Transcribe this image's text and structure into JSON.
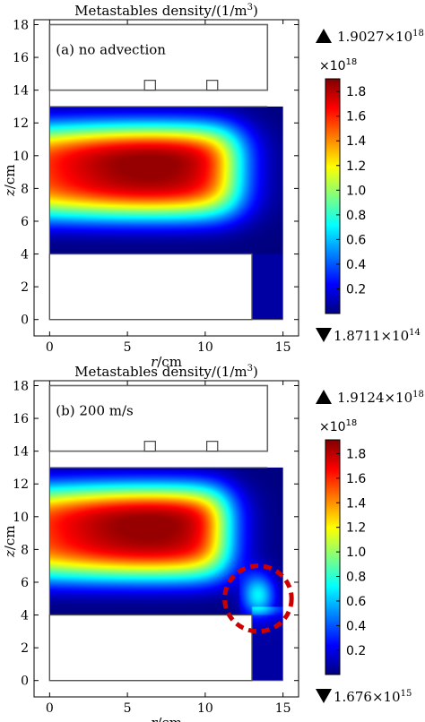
{
  "chart_data": [
    {
      "type": "heatmap",
      "title": "Metastables density/(1/m",
      "title_sup": "3",
      "title_close": ")",
      "panel_label": "(a)  no advection",
      "xlabel": "r/cm",
      "ylabel": "z/cm",
      "xlim": [
        -1,
        16
      ],
      "ylim": [
        -1,
        18.3
      ],
      "xticks": [
        "0",
        "5",
        "10",
        "15"
      ],
      "yticks": [
        "0",
        "2",
        "4",
        "6",
        "8",
        "10",
        "12",
        "14",
        "16",
        "18"
      ],
      "grid": false,
      "colorbar": {
        "multiplier": "×10",
        "multiplier_exp": "18",
        "ticks": [
          "1.8",
          "1.6",
          "1.4",
          "1.2",
          "1.0",
          "0.8",
          "0.6",
          "0.4",
          "0.2"
        ],
        "range": [
          0.00018711,
          1.9027
        ]
      },
      "max_label": "1.9027×10",
      "max_exp": "18",
      "min_label": "1.8711×10",
      "min_exp": "14",
      "peak_value": 1.9027,
      "min_value": 0.00018711,
      "plasma_region": {
        "r": [
          0,
          15
        ],
        "z": [
          4,
          13
        ]
      },
      "outlet_channel": {
        "r": [
          13,
          15
        ],
        "z": [
          0,
          4
        ]
      },
      "advection_highlight": false
    },
    {
      "type": "heatmap",
      "title": "Metastables density/(1/m",
      "title_sup": "3",
      "title_close": ")",
      "panel_label": "(b)  200 m/s",
      "xlabel": "r/cm",
      "ylabel": "z/cm",
      "xlim": [
        -1,
        16
      ],
      "ylim": [
        -1,
        18.3
      ],
      "xticks": [
        "0",
        "5",
        "10",
        "15"
      ],
      "yticks": [
        "0",
        "2",
        "4",
        "6",
        "8",
        "10",
        "12",
        "14",
        "16",
        "18"
      ],
      "grid": false,
      "colorbar": {
        "multiplier": "×10",
        "multiplier_exp": "18",
        "ticks": [
          "1.8",
          "1.6",
          "1.4",
          "1.2",
          "1.0",
          "0.8",
          "0.6",
          "0.4",
          "0.2"
        ],
        "range": [
          0.001676,
          1.9124
        ]
      },
      "max_label": "1.9124×10",
      "max_exp": "18",
      "min_label": "1.676×10",
      "min_exp": "15",
      "peak_value": 1.9124,
      "min_value": 0.001676,
      "plasma_region": {
        "r": [
          0,
          15
        ],
        "z": [
          4,
          13
        ]
      },
      "outlet_channel": {
        "r": [
          13,
          15
        ],
        "z": [
          0,
          4
        ]
      },
      "advection_highlight": true
    }
  ],
  "colors": {
    "jet": [
      "#00007f",
      "#0000ff",
      "#007fff",
      "#00ffff",
      "#7fff7f",
      "#ffff00",
      "#ff7f00",
      "#ff0000",
      "#7f0000"
    ],
    "highlight": "#cc0000",
    "frame": "#000000"
  }
}
